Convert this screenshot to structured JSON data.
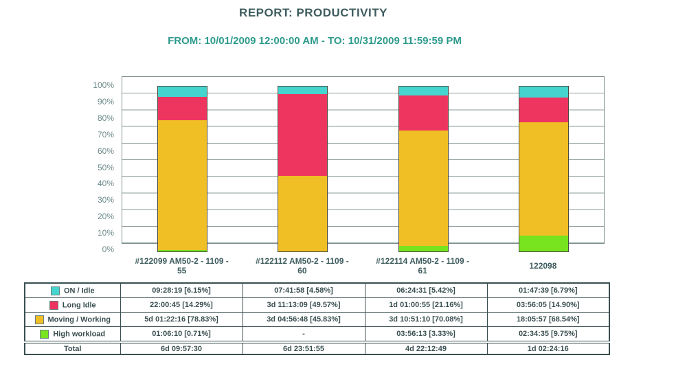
{
  "report": {
    "title": "REPORT: PRODUCTIVITY",
    "period": "FROM: 10/01/2009 12:00:00 AM - TO: 10/31/2009 11:59:59 PM"
  },
  "chart_data": {
    "type": "bar",
    "stacked": true,
    "unit": "percent",
    "title": "",
    "xlabel": "",
    "ylabel": "",
    "ylim": [
      0,
      100
    ],
    "grid": true,
    "gridline_step_percent": 10,
    "ytick_labels": [
      "100%",
      "90%",
      "80%",
      "70%",
      "60%",
      "50%",
      "40%",
      "30%",
      "20%",
      "10%",
      "0%"
    ],
    "categories": [
      "#122099 AM50-2 - 1109 - 55",
      "#122112 AM50-2 - 1109 - 60",
      "#122114 AM50-2 - 1109 - 61",
      "122098"
    ],
    "category_lines": [
      [
        "#122099 AM50-2 - 1109 -",
        "55"
      ],
      [
        "#122112 AM50-2 - 1109 -",
        "60"
      ],
      [
        "#122114 AM50-2 - 1109 -",
        "61"
      ],
      [
        "122098",
        ""
      ]
    ],
    "series": [
      {
        "name": "ON / Idle",
        "color": "#45D4CE",
        "values": [
          6.15,
          4.58,
          5.42,
          6.79
        ]
      },
      {
        "name": "Long Idle",
        "color": "#EE3560",
        "values": [
          14.29,
          49.57,
          21.16,
          14.9
        ]
      },
      {
        "name": "Moving / Working",
        "color": "#F0BE25",
        "values": [
          78.83,
          45.83,
          70.08,
          68.54
        ]
      },
      {
        "name": "High workload",
        "color": "#77E41F",
        "values": [
          0.71,
          0,
          3.33,
          9.75
        ]
      }
    ],
    "stack_order_bottom_to_top": [
      "High workload",
      "Moving / Working",
      "Long Idle",
      "ON / Idle"
    ],
    "legend_position": "table-below"
  },
  "table": {
    "rows": [
      {
        "label": "ON / Idle",
        "swatch": "#45D4CE",
        "values": [
          "09:28:19 [6.15%]",
          "07:41:58 [4.58%]",
          "06:24:31 [5.42%]",
          "01:47:39 [6.79%]"
        ]
      },
      {
        "label": "Long Idle",
        "swatch": "#EE3560",
        "values": [
          "22:00:45 [14.29%]",
          "3d 11:13:09 [49.57%]",
          "1d 01:00:55 [21.16%]",
          "03:56:05 [14.90%]"
        ]
      },
      {
        "label": "Moving / Working",
        "swatch": "#F0BE25",
        "values": [
          "5d 01:22:16 [78.83%]",
          "3d 04:56:48 [45.83%]",
          "3d 10:51:10 [70.08%]",
          "18:05:57 [68.54%]"
        ]
      },
      {
        "label": "High workload",
        "swatch": "#77E41F",
        "values": [
          "01:06:10 [0.71%]",
          "-",
          "03:56:13 [3.33%]",
          "02:34:35 [9.75%]"
        ]
      }
    ],
    "total": {
      "label": "Total",
      "values": [
        "6d 09:57:30",
        "6d 23:51:55",
        "4d 22:12:49",
        "1d 02:24:16"
      ]
    }
  }
}
